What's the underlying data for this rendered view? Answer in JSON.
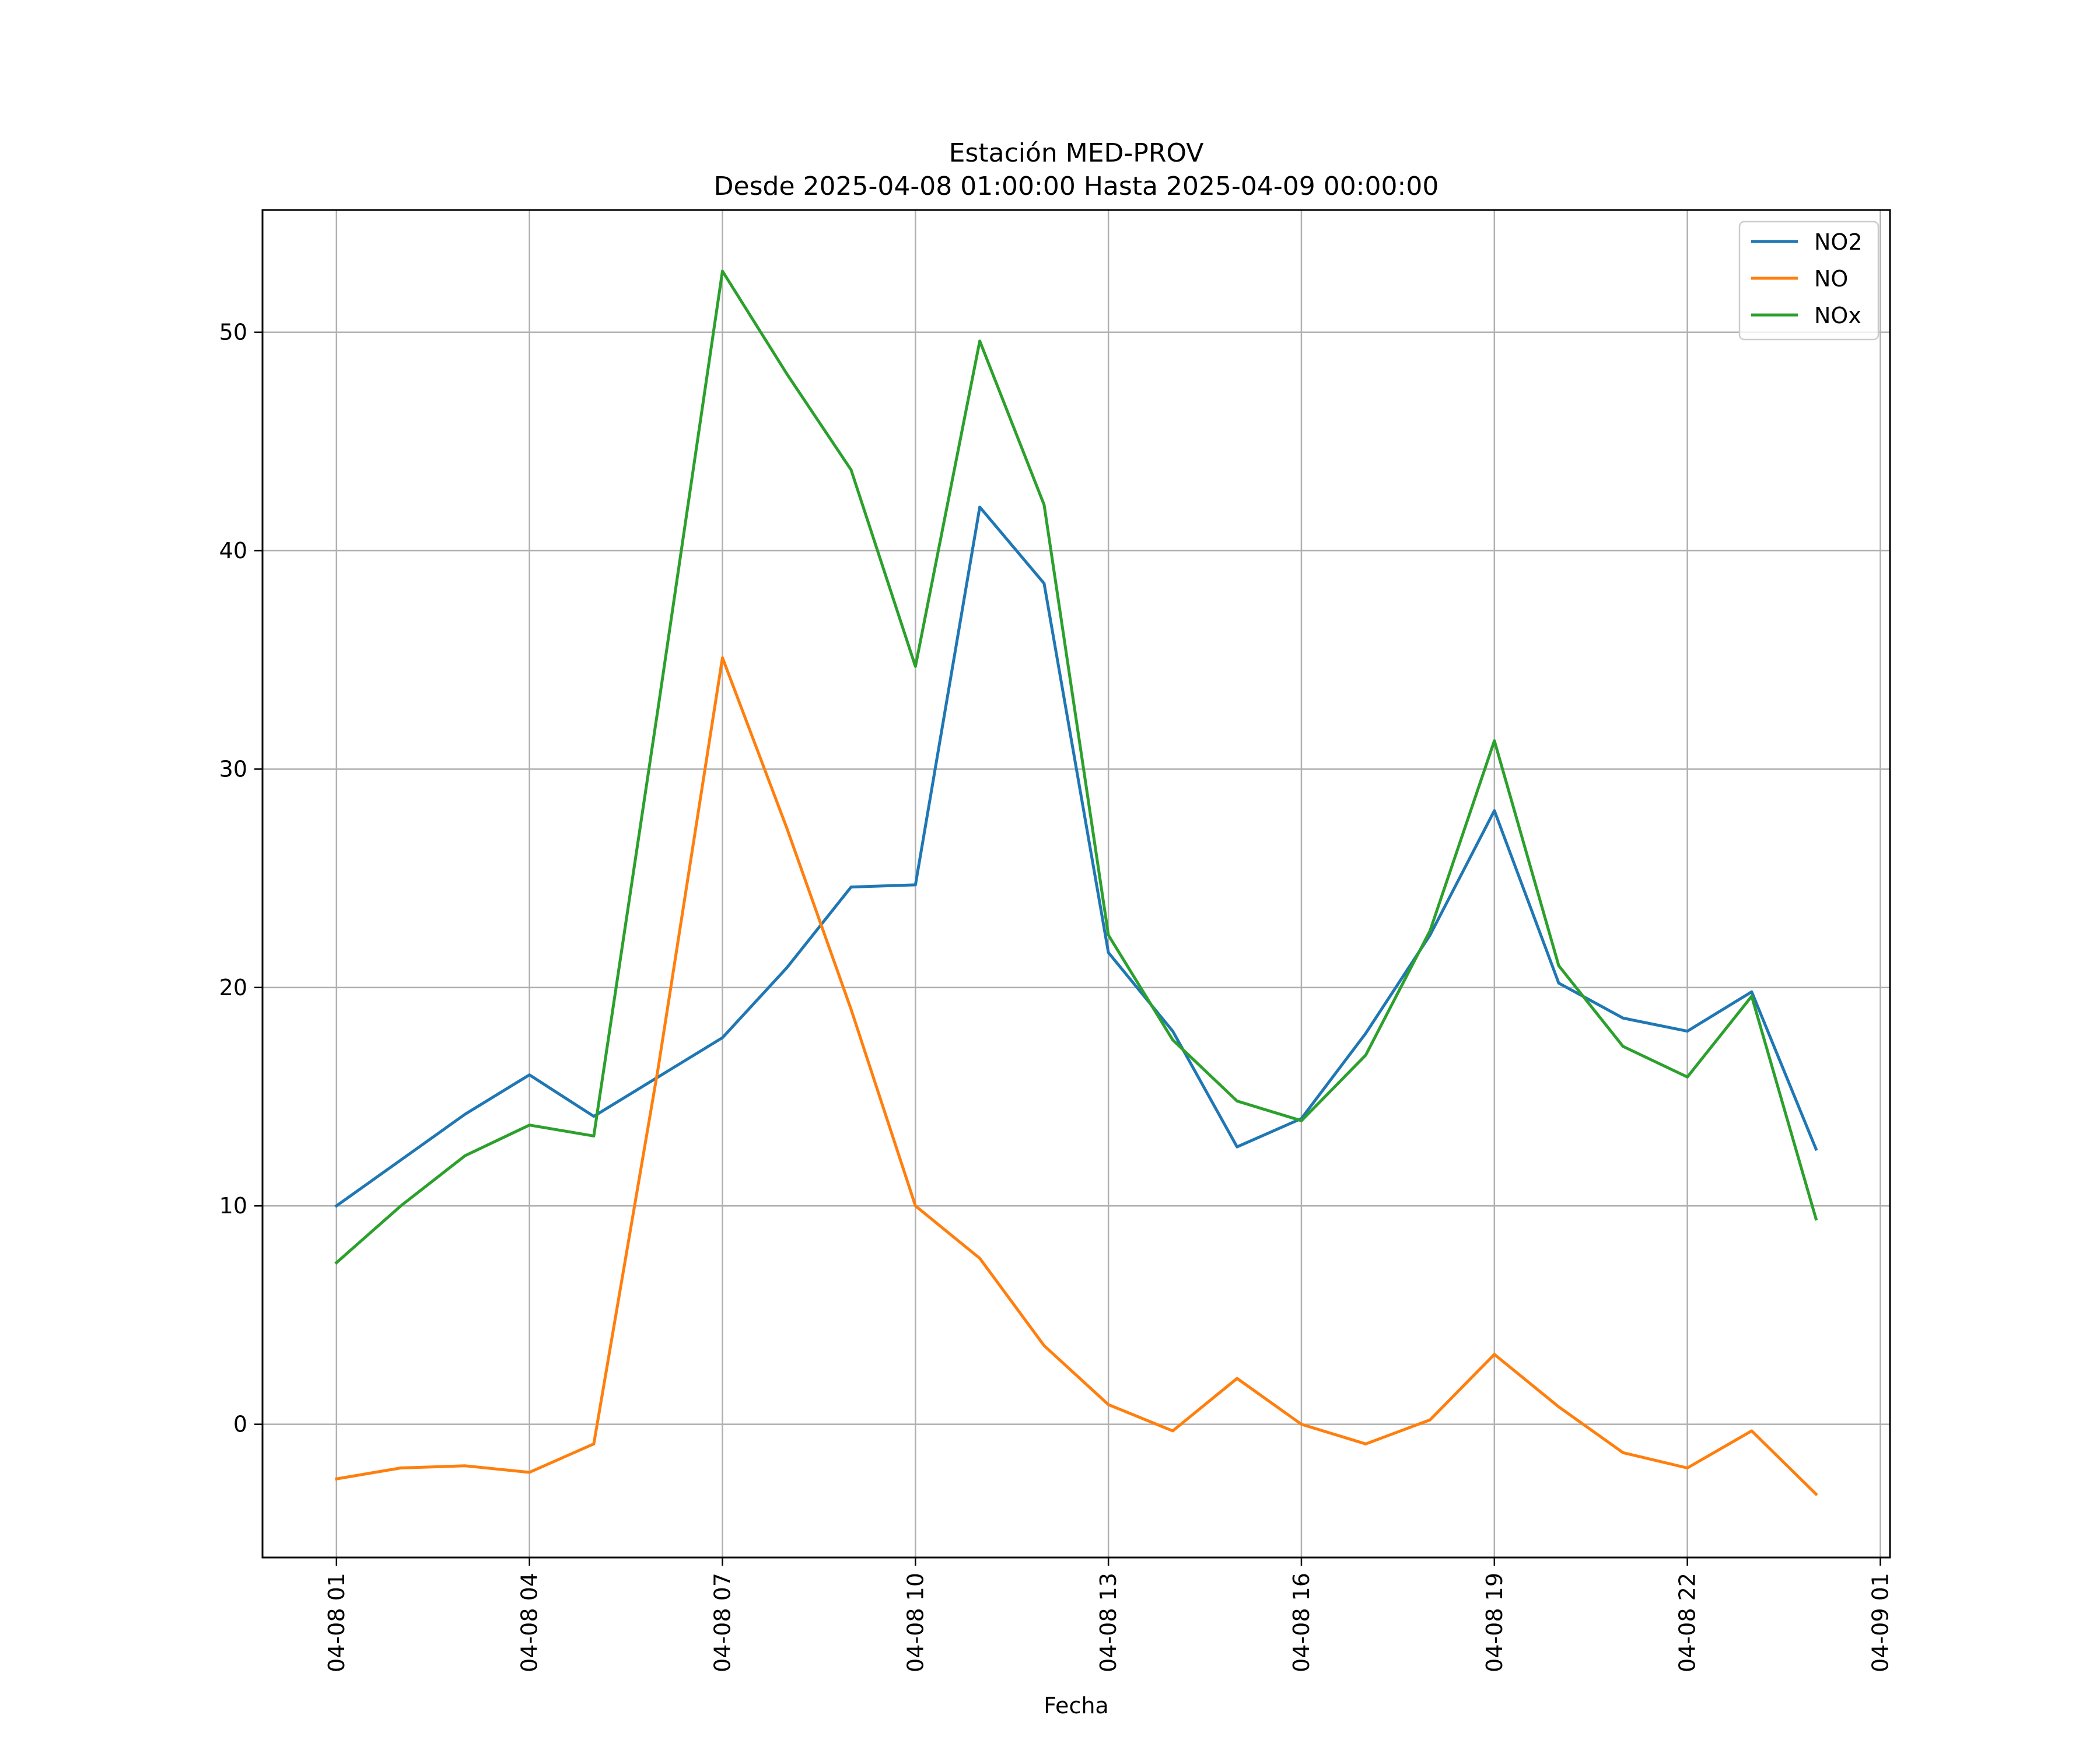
{
  "chart_data": {
    "type": "line",
    "title": "Estación MED-PROV",
    "subtitle": "Desde 2025-04-08 01:00:00 Hasta 2025-04-09 00:00:00",
    "xlabel": "Fecha",
    "ylabel": "",
    "x": [
      "2025-04-08 01:00",
      "2025-04-08 02:00",
      "2025-04-08 03:00",
      "2025-04-08 04:00",
      "2025-04-08 05:00",
      "2025-04-08 06:00",
      "2025-04-08 07:00",
      "2025-04-08 08:00",
      "2025-04-08 09:00",
      "2025-04-08 10:00",
      "2025-04-08 11:00",
      "2025-04-08 12:00",
      "2025-04-08 13:00",
      "2025-04-08 14:00",
      "2025-04-08 15:00",
      "2025-04-08 16:00",
      "2025-04-08 17:00",
      "2025-04-08 18:00",
      "2025-04-08 19:00",
      "2025-04-08 20:00",
      "2025-04-08 21:00",
      "2025-04-08 22:00",
      "2025-04-08 23:00",
      "2025-04-09 00:00"
    ],
    "x_ticks": [
      "04-08 01",
      "04-08 04",
      "04-08 07",
      "04-08 10",
      "04-08 13",
      "04-08 16",
      "04-08 19",
      "04-08 22",
      "04-09 01"
    ],
    "y_ticks": [
      0,
      10,
      20,
      30,
      40,
      50
    ],
    "xlim": [
      "2025-04-07 23:51",
      "2025-04-09 01:09"
    ],
    "ylim": [
      -6.1,
      55.6
    ],
    "grid": true,
    "legend_position": "top-right",
    "series": [
      {
        "name": "NO2",
        "color": "#1f77b4",
        "values": [
          10.0,
          12.1,
          14.2,
          16.0,
          14.1,
          15.9,
          17.7,
          20.9,
          24.6,
          24.7,
          42.0,
          38.5,
          21.6,
          18.0,
          12.7,
          14.0,
          17.9,
          22.4,
          28.1,
          20.2,
          18.6,
          18.0,
          19.8,
          12.6
        ]
      },
      {
        "name": "NO",
        "color": "#ff7f0e",
        "values": [
          -2.5,
          -2.0,
          -1.9,
          -2.2,
          -0.9,
          16.3,
          35.1,
          27.3,
          19.0,
          10.0,
          7.6,
          3.6,
          0.9,
          -0.3,
          2.1,
          0.0,
          -0.9,
          0.2,
          3.2,
          0.8,
          -1.3,
          -2.0,
          -0.3,
          -3.2
        ]
      },
      {
        "name": "NOx",
        "color": "#2ca02c",
        "values": [
          7.4,
          10.0,
          12.3,
          13.7,
          13.2,
          32.8,
          52.8,
          48.1,
          43.7,
          34.7,
          49.6,
          42.1,
          22.4,
          17.6,
          14.8,
          13.9,
          16.9,
          22.6,
          31.3,
          21.0,
          17.3,
          15.9,
          19.6,
          9.4
        ]
      }
    ]
  }
}
